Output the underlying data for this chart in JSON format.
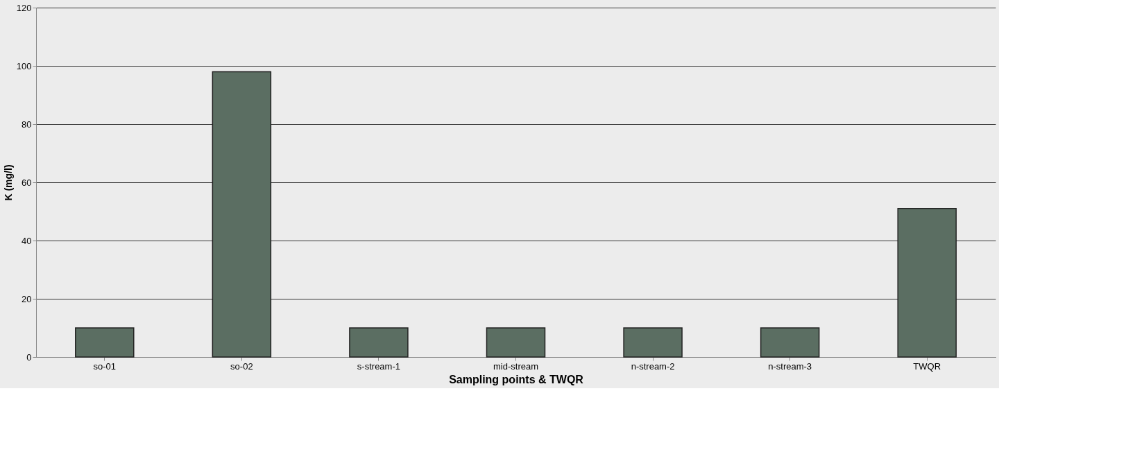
{
  "chart_data": {
    "type": "bar",
    "xlabel": "Sampling points & TWQR",
    "ylabel": "K (mg/l)",
    "categories": [
      "so-01",
      "so-02",
      "s-stream-1",
      "mid-stream",
      "n-stream-2",
      "n-stream-3",
      "TWQR"
    ],
    "values": [
      10,
      98,
      10,
      10,
      10,
      10,
      51
    ],
    "color": "#5b6e62",
    "ylim": [
      0,
      120
    ],
    "yticks": [
      0,
      20,
      40,
      60,
      80,
      100,
      120
    ],
    "grid": "y"
  }
}
